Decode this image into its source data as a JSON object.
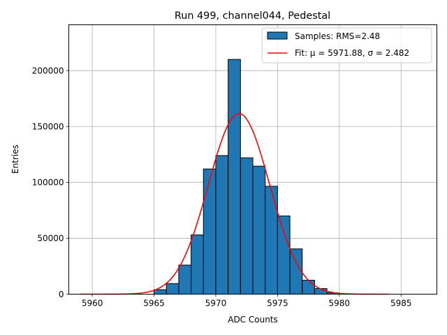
{
  "chart_data": {
    "type": "bar",
    "title": "Run 499, channel044, Pedestal",
    "xlabel": "ADC Counts",
    "ylabel": "Entries",
    "xlim": [
      5958.1,
      5987.9
    ],
    "ylim": [
      0,
      241000
    ],
    "grid": true,
    "legend_position": "top-right",
    "xticks": [
      5960,
      5965,
      5970,
      5975,
      5980,
      5985
    ],
    "yticks": [
      0,
      50000,
      100000,
      150000,
      200000
    ],
    "bin_width": 1,
    "bins": [
      {
        "x": 5965.5,
        "value": 4000
      },
      {
        "x": 5966.5,
        "value": 9500
      },
      {
        "x": 5967.5,
        "value": 26000
      },
      {
        "x": 5968.5,
        "value": 53000
      },
      {
        "x": 5969.5,
        "value": 112000
      },
      {
        "x": 5970.5,
        "value": 124000
      },
      {
        "x": 5971.5,
        "value": 210000
      },
      {
        "x": 5972.5,
        "value": 122000
      },
      {
        "x": 5973.5,
        "value": 114500
      },
      {
        "x": 5974.5,
        "value": 96500
      },
      {
        "x": 5975.5,
        "value": 70000
      },
      {
        "x": 5976.5,
        "value": 40500
      },
      {
        "x": 5977.5,
        "value": 12500
      },
      {
        "x": 5978.5,
        "value": 5000
      },
      {
        "x": 5979.5,
        "value": 1200
      }
    ],
    "fit": {
      "mu": 5971.88,
      "sigma": 2.482,
      "amplitude": 161500,
      "x_range": [
        5959,
        5984
      ]
    },
    "legend": [
      {
        "label": "Samples: RMS=2.48",
        "color": "#1f77b4",
        "kind": "patch"
      },
      {
        "label": "Fit: μ = 5971.88, σ = 2.482",
        "color": "#ff0000",
        "kind": "line"
      }
    ],
    "colors": {
      "bar_fill": "#1f77b4",
      "bar_edge": "#000000",
      "fit_line": "#ff0000",
      "grid": "#b0b0b0"
    }
  }
}
